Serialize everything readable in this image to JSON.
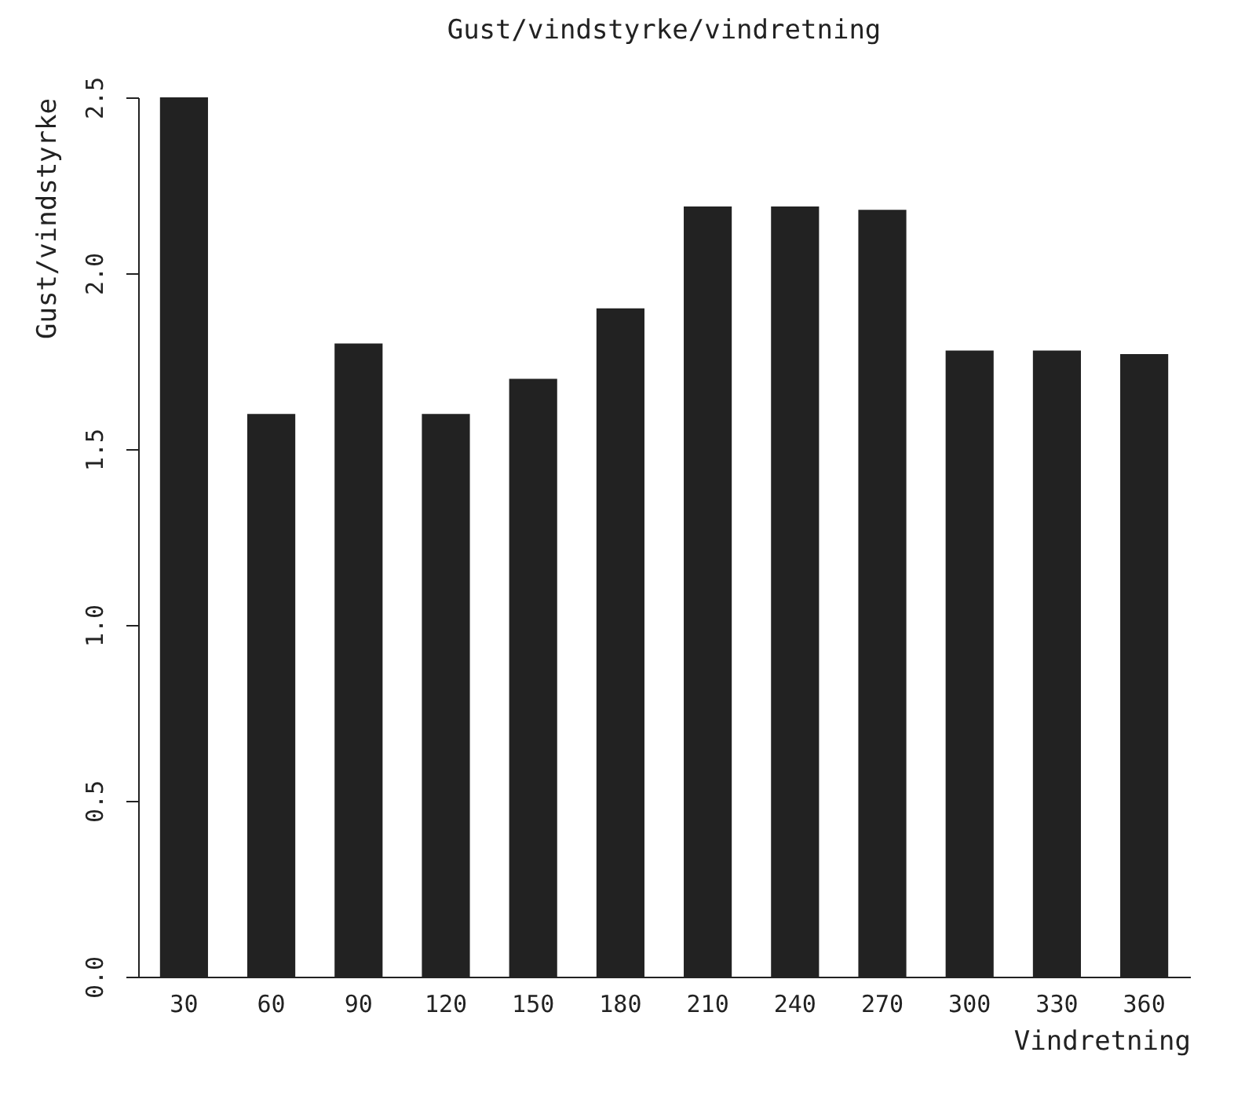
{
  "chart_data": {
    "type": "bar",
    "title": "Gust/vindstyrke/vindretning",
    "xlabel": "Vindretning",
    "ylabel": "Gust/vindstyrke",
    "categories": [
      "30",
      "60",
      "90",
      "120",
      "150",
      "180",
      "210",
      "240",
      "270",
      "300",
      "330",
      "360"
    ],
    "values": [
      2.5,
      1.6,
      1.8,
      1.6,
      1.7,
      1.9,
      2.19,
      2.19,
      2.18,
      1.78,
      1.78,
      1.77
    ],
    "color": "#222222",
    "ylim": [
      0,
      2.5
    ],
    "yticks": [
      {
        "value": 0,
        "label": "0.0"
      },
      {
        "value": 0.5,
        "label": "0.5"
      },
      {
        "value": 1,
        "label": "1.0"
      },
      {
        "value": 1.5,
        "label": "1.5"
      },
      {
        "value": 2,
        "label": "2.0"
      },
      {
        "value": 2.5,
        "label": "2.5"
      }
    ],
    "grid": false
  }
}
